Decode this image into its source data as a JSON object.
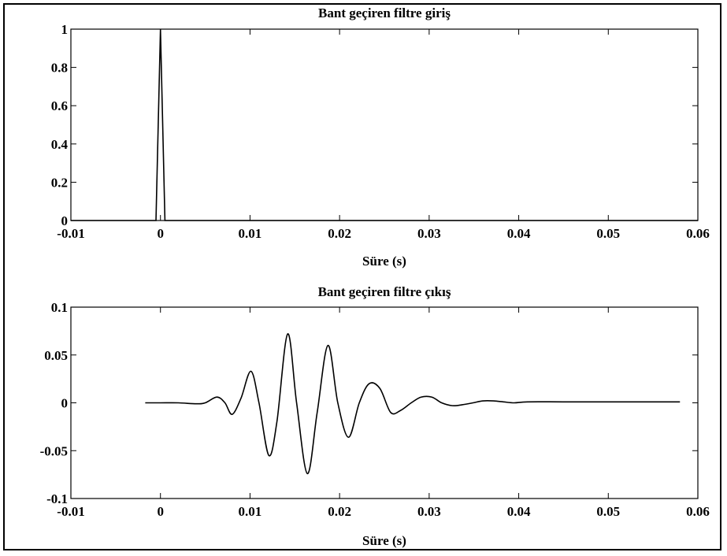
{
  "chart_data": [
    {
      "type": "line",
      "title": "Bant geçiren filtre giriş",
      "xlabel": "Süre (s)",
      "ylabel": "",
      "xlim": [
        -0.01,
        0.06
      ],
      "ylim": [
        0,
        1
      ],
      "x_ticks": [
        "-0.01",
        "0",
        "0.01",
        "0.02",
        "0.03",
        "0.04",
        "0.05",
        "0.06"
      ],
      "y_ticks": [
        "0",
        "0.2",
        "0.4",
        "0.6",
        "0.8",
        "1"
      ],
      "grid": false,
      "color": "#000000",
      "series": [
        {
          "x": [
            -0.01,
            -0.0005,
            0.0,
            0.0005,
            0.06
          ],
          "y": [
            0,
            0,
            1,
            0,
            0
          ]
        }
      ]
    },
    {
      "type": "line",
      "title": "Bant geçiren filtre çıkış",
      "xlabel": "Süre (s)",
      "ylabel": "",
      "xlim": [
        -0.01,
        0.06
      ],
      "ylim": [
        -0.1,
        0.1
      ],
      "x_ticks": [
        "-0.01",
        "0",
        "0.01",
        "0.02",
        "0.03",
        "0.04",
        "0.05",
        "0.06"
      ],
      "y_ticks": [
        "-0.1",
        "-0.05",
        "0",
        "0.05",
        "0.1"
      ],
      "grid": false,
      "color": "#000000",
      "series": [
        {
          "x": [
            -0.0017,
            0.0,
            0.002,
            0.004,
            0.005,
            0.0063,
            0.0072,
            0.008,
            0.009,
            0.0101,
            0.011,
            0.0121,
            0.013,
            0.0142,
            0.0152,
            0.0164,
            0.0175,
            0.0187,
            0.0198,
            0.021,
            0.0222,
            0.0233,
            0.0245,
            0.0257,
            0.0268,
            0.028,
            0.0291,
            0.0303,
            0.0314,
            0.0326,
            0.0337,
            0.0349,
            0.036,
            0.0372,
            0.0383,
            0.0395,
            0.041,
            0.045,
            0.05,
            0.058
          ],
          "y": [
            0.0,
            0.0,
            0.0,
            -0.001,
            0.0,
            0.006,
            0.0,
            -0.012,
            0.005,
            0.033,
            0.0,
            -0.055,
            -0.02,
            0.072,
            0.0,
            -0.074,
            -0.01,
            0.06,
            0.0,
            -0.036,
            0.0,
            0.02,
            0.015,
            -0.01,
            -0.008,
            0.0,
            0.006,
            0.006,
            0.0,
            -0.003,
            -0.002,
            0.0,
            0.002,
            0.002,
            0.001,
            0.0,
            0.001,
            0.001,
            0.001,
            0.001
          ]
        }
      ]
    }
  ]
}
